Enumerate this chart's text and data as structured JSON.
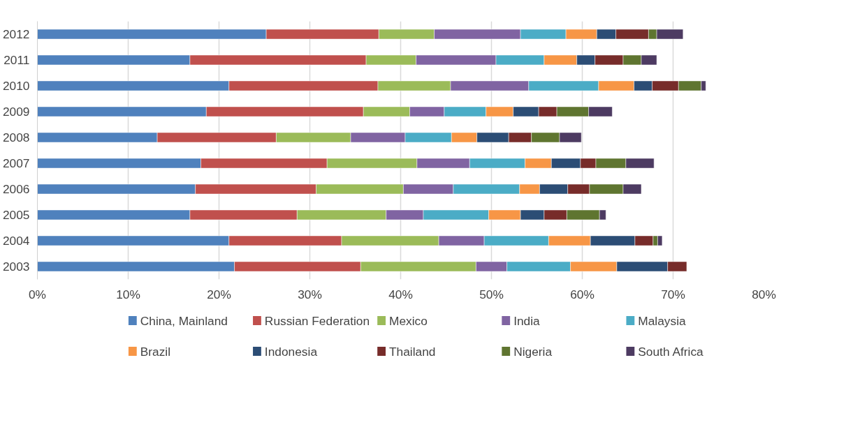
{
  "chart_data": {
    "type": "bar",
    "orientation": "horizontal",
    "stacked": true,
    "categories": [
      "2012",
      "2011",
      "2010",
      "2009",
      "2008",
      "2007",
      "2006",
      "2005",
      "2004",
      "2003"
    ],
    "series": [
      {
        "name": "China, Mainland",
        "color": "#4f81bd",
        "values": [
          25.2,
          16.8,
          21.1,
          18.6,
          13.2,
          18.0,
          17.4,
          16.8,
          21.1,
          21.7
        ]
      },
      {
        "name": "Russian Federation",
        "color": "#c0504d",
        "values": [
          12.4,
          19.4,
          16.4,
          17.3,
          13.1,
          13.9,
          13.3,
          11.8,
          12.4,
          13.9
        ]
      },
      {
        "name": "Mexico",
        "color": "#9bbb59",
        "values": [
          6.1,
          5.5,
          8.0,
          5.1,
          8.2,
          9.9,
          9.6,
          9.8,
          10.7,
          12.7
        ]
      },
      {
        "name": "India",
        "color": "#8064a2",
        "values": [
          9.5,
          8.8,
          8.6,
          3.8,
          6.0,
          5.8,
          5.5,
          4.1,
          5.0,
          3.4
        ]
      },
      {
        "name": "Malaysia",
        "color": "#4bacc6",
        "values": [
          5.0,
          5.3,
          7.7,
          4.6,
          5.1,
          6.1,
          7.3,
          7.2,
          7.1,
          7.0
        ]
      },
      {
        "name": "Brazil",
        "color": "#f79646",
        "values": [
          3.4,
          3.6,
          3.9,
          3.0,
          2.8,
          2.9,
          2.2,
          3.5,
          4.6,
          5.1
        ]
      },
      {
        "name": "Indonesia",
        "color": "#2c4d75",
        "values": [
          2.1,
          2.0,
          2.0,
          2.8,
          3.5,
          3.2,
          3.1,
          2.6,
          4.9,
          5.6
        ]
      },
      {
        "name": "Thailand",
        "color": "#772c2a",
        "values": [
          3.6,
          3.1,
          2.9,
          2.0,
          2.5,
          1.7,
          2.4,
          2.5,
          2.0,
          2.1
        ]
      },
      {
        "name": "Nigeria",
        "color": "#5f7530",
        "values": [
          0.9,
          2.0,
          2.5,
          3.5,
          3.1,
          3.3,
          3.7,
          3.6,
          0.5,
          null
        ]
      },
      {
        "name": "South Africa",
        "color": "#4d3b62",
        "values": [
          2.9,
          1.7,
          0.5,
          2.6,
          2.4,
          3.1,
          2.0,
          0.7,
          0.5,
          null
        ]
      }
    ],
    "xlim": [
      0,
      80
    ],
    "xticks": [
      {
        "value": 0,
        "label": "0%"
      },
      {
        "value": 10,
        "label": "10%"
      },
      {
        "value": 20,
        "label": "20%"
      },
      {
        "value": 30,
        "label": "30%"
      },
      {
        "value": 40,
        "label": "40%"
      },
      {
        "value": 50,
        "label": "50%"
      },
      {
        "value": 60,
        "label": "60%"
      },
      {
        "value": 70,
        "label": "70%"
      },
      {
        "value": 80,
        "label": "80%"
      }
    ],
    "grid": "x",
    "legend": "bottom"
  }
}
